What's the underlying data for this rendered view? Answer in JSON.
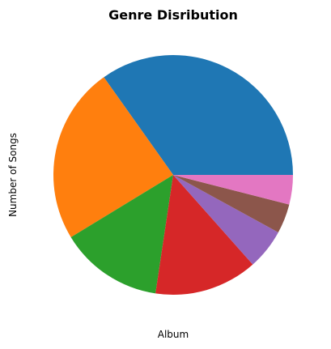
{
  "chart_data": {
    "type": "pie",
    "title": "Genre Disribution",
    "xlabel": "Album",
    "ylabel": "Number of Songs",
    "values": [
      35,
      24,
      14,
      14,
      5.5,
      4,
      4
    ],
    "colors": [
      "#1f77b4",
      "#ff7f0e",
      "#2ca02c",
      "#d62728",
      "#9467bd",
      "#8c564b",
      "#e377c2"
    ],
    "start_angle_deg": 0,
    "direction": "counterclockwise",
    "legend": "none",
    "grid": false
  }
}
